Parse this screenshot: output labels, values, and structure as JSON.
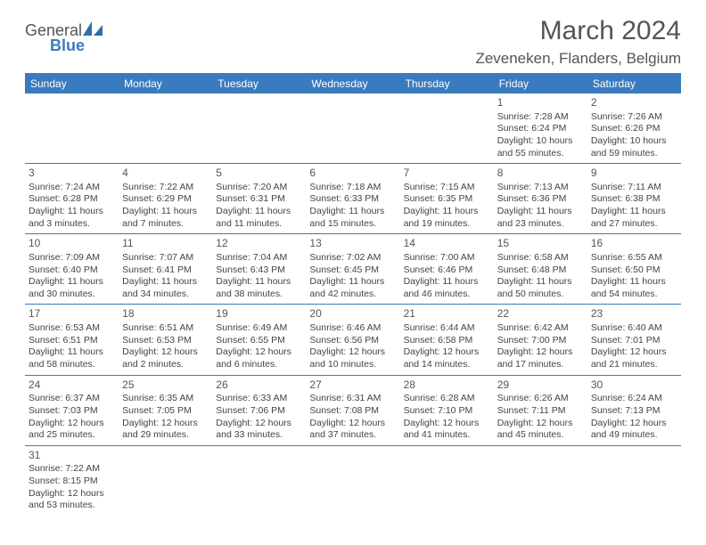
{
  "logo": {
    "line1": "General",
    "line2": "Blue",
    "sail_color": "#2f6fae"
  },
  "header": {
    "month_title": "March 2024",
    "location": "Zeveneken, Flanders, Belgium"
  },
  "colors": {
    "accent": "#3a7bbf",
    "text": "#444444",
    "bg": "#ffffff"
  },
  "weekdays": [
    "Sunday",
    "Monday",
    "Tuesday",
    "Wednesday",
    "Thursday",
    "Friday",
    "Saturday"
  ],
  "weeks": [
    [
      null,
      null,
      null,
      null,
      null,
      {
        "num": "1",
        "sunrise": "Sunrise: 7:28 AM",
        "sunset": "Sunset: 6:24 PM",
        "daylight": "Daylight: 10 hours and 55 minutes."
      },
      {
        "num": "2",
        "sunrise": "Sunrise: 7:26 AM",
        "sunset": "Sunset: 6:26 PM",
        "daylight": "Daylight: 10 hours and 59 minutes."
      }
    ],
    [
      {
        "num": "3",
        "sunrise": "Sunrise: 7:24 AM",
        "sunset": "Sunset: 6:28 PM",
        "daylight": "Daylight: 11 hours and 3 minutes."
      },
      {
        "num": "4",
        "sunrise": "Sunrise: 7:22 AM",
        "sunset": "Sunset: 6:29 PM",
        "daylight": "Daylight: 11 hours and 7 minutes."
      },
      {
        "num": "5",
        "sunrise": "Sunrise: 7:20 AM",
        "sunset": "Sunset: 6:31 PM",
        "daylight": "Daylight: 11 hours and 11 minutes."
      },
      {
        "num": "6",
        "sunrise": "Sunrise: 7:18 AM",
        "sunset": "Sunset: 6:33 PM",
        "daylight": "Daylight: 11 hours and 15 minutes."
      },
      {
        "num": "7",
        "sunrise": "Sunrise: 7:15 AM",
        "sunset": "Sunset: 6:35 PM",
        "daylight": "Daylight: 11 hours and 19 minutes."
      },
      {
        "num": "8",
        "sunrise": "Sunrise: 7:13 AM",
        "sunset": "Sunset: 6:36 PM",
        "daylight": "Daylight: 11 hours and 23 minutes."
      },
      {
        "num": "9",
        "sunrise": "Sunrise: 7:11 AM",
        "sunset": "Sunset: 6:38 PM",
        "daylight": "Daylight: 11 hours and 27 minutes."
      }
    ],
    [
      {
        "num": "10",
        "sunrise": "Sunrise: 7:09 AM",
        "sunset": "Sunset: 6:40 PM",
        "daylight": "Daylight: 11 hours and 30 minutes."
      },
      {
        "num": "11",
        "sunrise": "Sunrise: 7:07 AM",
        "sunset": "Sunset: 6:41 PM",
        "daylight": "Daylight: 11 hours and 34 minutes."
      },
      {
        "num": "12",
        "sunrise": "Sunrise: 7:04 AM",
        "sunset": "Sunset: 6:43 PM",
        "daylight": "Daylight: 11 hours and 38 minutes."
      },
      {
        "num": "13",
        "sunrise": "Sunrise: 7:02 AM",
        "sunset": "Sunset: 6:45 PM",
        "daylight": "Daylight: 11 hours and 42 minutes."
      },
      {
        "num": "14",
        "sunrise": "Sunrise: 7:00 AM",
        "sunset": "Sunset: 6:46 PM",
        "daylight": "Daylight: 11 hours and 46 minutes."
      },
      {
        "num": "15",
        "sunrise": "Sunrise: 6:58 AM",
        "sunset": "Sunset: 6:48 PM",
        "daylight": "Daylight: 11 hours and 50 minutes."
      },
      {
        "num": "16",
        "sunrise": "Sunrise: 6:55 AM",
        "sunset": "Sunset: 6:50 PM",
        "daylight": "Daylight: 11 hours and 54 minutes."
      }
    ],
    [
      {
        "num": "17",
        "sunrise": "Sunrise: 6:53 AM",
        "sunset": "Sunset: 6:51 PM",
        "daylight": "Daylight: 11 hours and 58 minutes."
      },
      {
        "num": "18",
        "sunrise": "Sunrise: 6:51 AM",
        "sunset": "Sunset: 6:53 PM",
        "daylight": "Daylight: 12 hours and 2 minutes."
      },
      {
        "num": "19",
        "sunrise": "Sunrise: 6:49 AM",
        "sunset": "Sunset: 6:55 PM",
        "daylight": "Daylight: 12 hours and 6 minutes."
      },
      {
        "num": "20",
        "sunrise": "Sunrise: 6:46 AM",
        "sunset": "Sunset: 6:56 PM",
        "daylight": "Daylight: 12 hours and 10 minutes."
      },
      {
        "num": "21",
        "sunrise": "Sunrise: 6:44 AM",
        "sunset": "Sunset: 6:58 PM",
        "daylight": "Daylight: 12 hours and 14 minutes."
      },
      {
        "num": "22",
        "sunrise": "Sunrise: 6:42 AM",
        "sunset": "Sunset: 7:00 PM",
        "daylight": "Daylight: 12 hours and 17 minutes."
      },
      {
        "num": "23",
        "sunrise": "Sunrise: 6:40 AM",
        "sunset": "Sunset: 7:01 PM",
        "daylight": "Daylight: 12 hours and 21 minutes."
      }
    ],
    [
      {
        "num": "24",
        "sunrise": "Sunrise: 6:37 AM",
        "sunset": "Sunset: 7:03 PM",
        "daylight": "Daylight: 12 hours and 25 minutes."
      },
      {
        "num": "25",
        "sunrise": "Sunrise: 6:35 AM",
        "sunset": "Sunset: 7:05 PM",
        "daylight": "Daylight: 12 hours and 29 minutes."
      },
      {
        "num": "26",
        "sunrise": "Sunrise: 6:33 AM",
        "sunset": "Sunset: 7:06 PM",
        "daylight": "Daylight: 12 hours and 33 minutes."
      },
      {
        "num": "27",
        "sunrise": "Sunrise: 6:31 AM",
        "sunset": "Sunset: 7:08 PM",
        "daylight": "Daylight: 12 hours and 37 minutes."
      },
      {
        "num": "28",
        "sunrise": "Sunrise: 6:28 AM",
        "sunset": "Sunset: 7:10 PM",
        "daylight": "Daylight: 12 hours and 41 minutes."
      },
      {
        "num": "29",
        "sunrise": "Sunrise: 6:26 AM",
        "sunset": "Sunset: 7:11 PM",
        "daylight": "Daylight: 12 hours and 45 minutes."
      },
      {
        "num": "30",
        "sunrise": "Sunrise: 6:24 AM",
        "sunset": "Sunset: 7:13 PM",
        "daylight": "Daylight: 12 hours and 49 minutes."
      }
    ],
    [
      {
        "num": "31",
        "sunrise": "Sunrise: 7:22 AM",
        "sunset": "Sunset: 8:15 PM",
        "daylight": "Daylight: 12 hours and 53 minutes."
      },
      null,
      null,
      null,
      null,
      null,
      null
    ]
  ]
}
